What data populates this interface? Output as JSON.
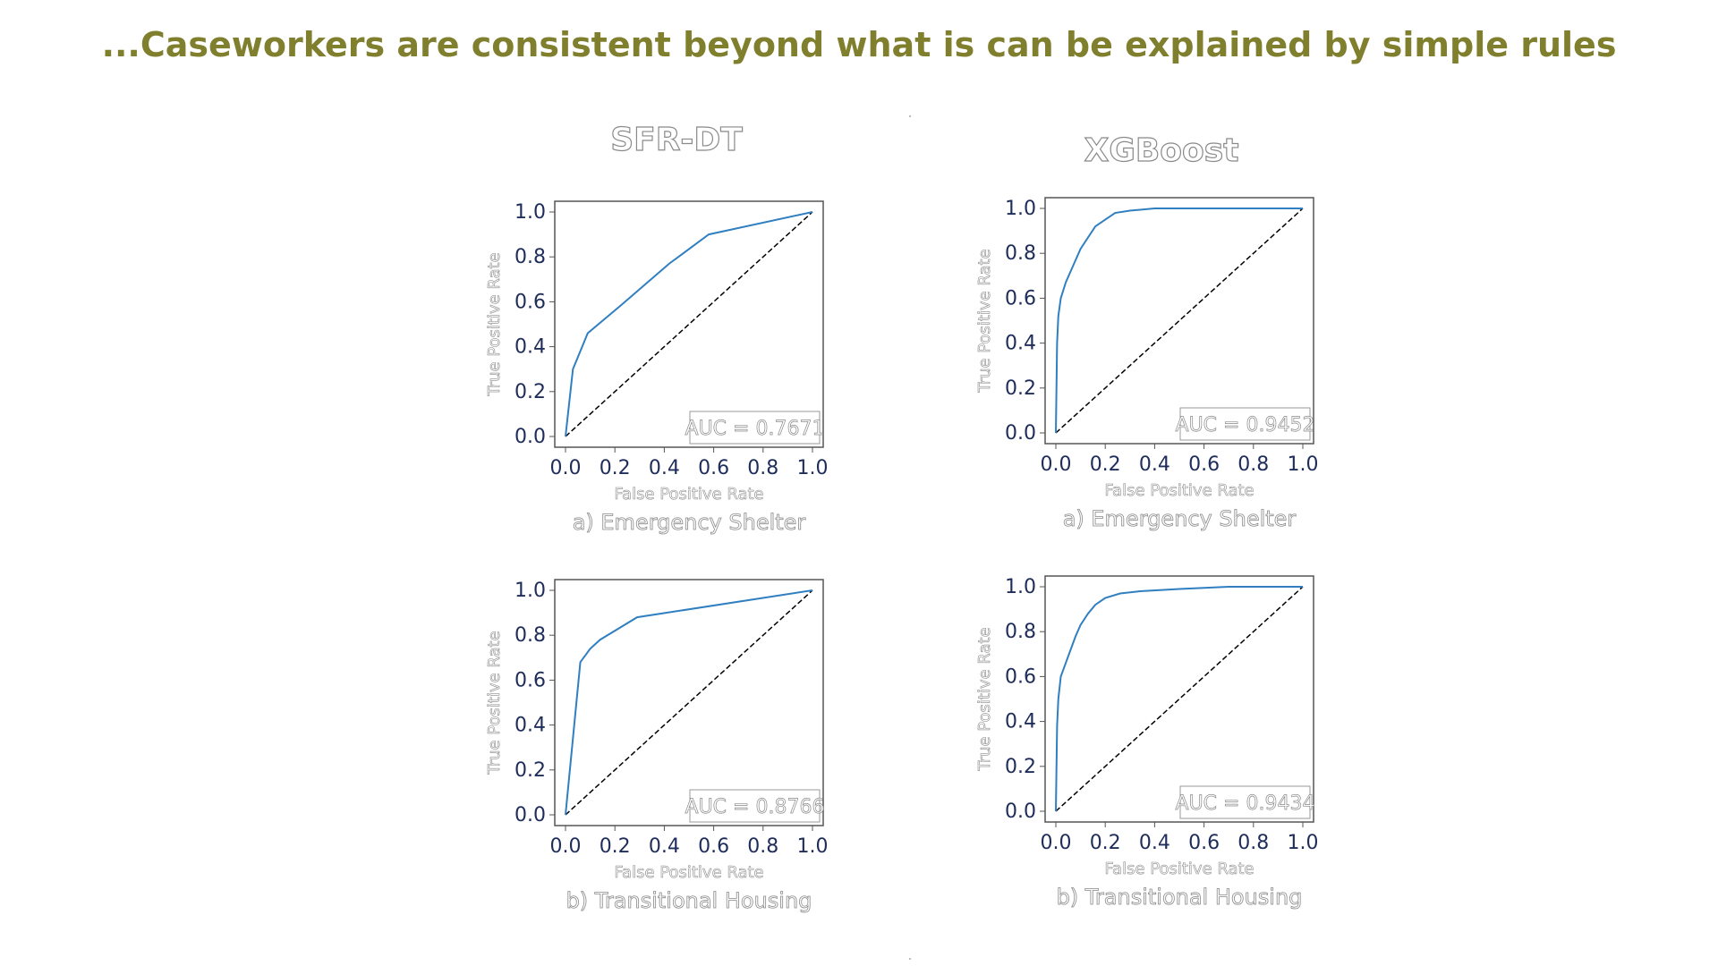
{
  "headline": "...Caseworkers are consistent beyond what is can be explained by simple rules",
  "column_titles": [
    "SFR-DT",
    "XGBoost"
  ],
  "colors": {
    "headline": "#7f7f2e",
    "roc": "#2f7fc1",
    "diagonal": "#000000",
    "ticks": "#1f2d5a"
  },
  "chart_data": [
    {
      "type": "line",
      "group": "SFR-DT",
      "caption": "a) Emergency Shelter",
      "xlabel": "False Positive Rate",
      "ylabel": "True Positive Rate",
      "xlim": [
        0,
        1
      ],
      "ylim": [
        0,
        1
      ],
      "xticks": [
        "0.0",
        "0.2",
        "0.4",
        "0.6",
        "0.8",
        "1.0"
      ],
      "yticks": [
        "0.0",
        "0.2",
        "0.4",
        "0.6",
        "0.8",
        "1.0"
      ],
      "auc_label": "AUC = 0.7671",
      "series": [
        {
          "x": [
            0,
            0.03,
            0.09,
            0.22,
            0.42,
            0.58,
            1.0
          ],
          "y": [
            0,
            0.3,
            0.46,
            0.58,
            0.77,
            0.9,
            1.0
          ]
        }
      ]
    },
    {
      "type": "line",
      "group": "XGBoost",
      "caption": "a) Emergency Shelter",
      "xlabel": "False Positive Rate",
      "ylabel": "True Positive Rate",
      "xlim": [
        0,
        1
      ],
      "ylim": [
        0,
        1
      ],
      "xticks": [
        "0.0",
        "0.2",
        "0.4",
        "0.6",
        "0.8",
        "1.0"
      ],
      "yticks": [
        "0.0",
        "0.2",
        "0.4",
        "0.6",
        "0.8",
        "1.0"
      ],
      "auc_label": "AUC = 0.9452",
      "series": [
        {
          "x": [
            0,
            0.005,
            0.01,
            0.02,
            0.04,
            0.06,
            0.08,
            0.1,
            0.13,
            0.16,
            0.2,
            0.24,
            0.3,
            0.4,
            0.6,
            1.0
          ],
          "y": [
            0,
            0.4,
            0.52,
            0.6,
            0.67,
            0.72,
            0.77,
            0.82,
            0.87,
            0.92,
            0.95,
            0.98,
            0.99,
            1.0,
            1.0,
            1.0
          ]
        }
      ]
    },
    {
      "type": "line",
      "group": "SFR-DT",
      "caption": "b) Transitional Housing",
      "xlabel": "False Positive Rate",
      "ylabel": "True Positive Rate",
      "xlim": [
        0,
        1
      ],
      "ylim": [
        0,
        1
      ],
      "xticks": [
        "0.0",
        "0.2",
        "0.4",
        "0.6",
        "0.8",
        "1.0"
      ],
      "yticks": [
        "0.0",
        "0.2",
        "0.4",
        "0.6",
        "0.8",
        "1.0"
      ],
      "auc_label": "AUC = 0.8766",
      "series": [
        {
          "x": [
            0,
            0.06,
            0.1,
            0.14,
            0.29,
            1.0
          ],
          "y": [
            0,
            0.68,
            0.74,
            0.78,
            0.88,
            1.0
          ]
        }
      ]
    },
    {
      "type": "line",
      "group": "XGBoost",
      "caption": "b) Transitional Housing",
      "xlabel": "False Positive Rate",
      "ylabel": "True Positive Rate",
      "xlim": [
        0,
        1
      ],
      "ylim": [
        0,
        1
      ],
      "xticks": [
        "0.0",
        "0.2",
        "0.4",
        "0.6",
        "0.8",
        "1.0"
      ],
      "yticks": [
        "0.0",
        "0.2",
        "0.4",
        "0.6",
        "0.8",
        "1.0"
      ],
      "auc_label": "AUC = 0.9434",
      "series": [
        {
          "x": [
            0,
            0.005,
            0.01,
            0.02,
            0.04,
            0.06,
            0.08,
            0.1,
            0.13,
            0.16,
            0.2,
            0.26,
            0.34,
            0.5,
            0.7,
            1.0
          ],
          "y": [
            0,
            0.38,
            0.5,
            0.6,
            0.66,
            0.72,
            0.78,
            0.83,
            0.88,
            0.92,
            0.95,
            0.97,
            0.98,
            0.99,
            1.0,
            1.0
          ]
        }
      ]
    }
  ]
}
